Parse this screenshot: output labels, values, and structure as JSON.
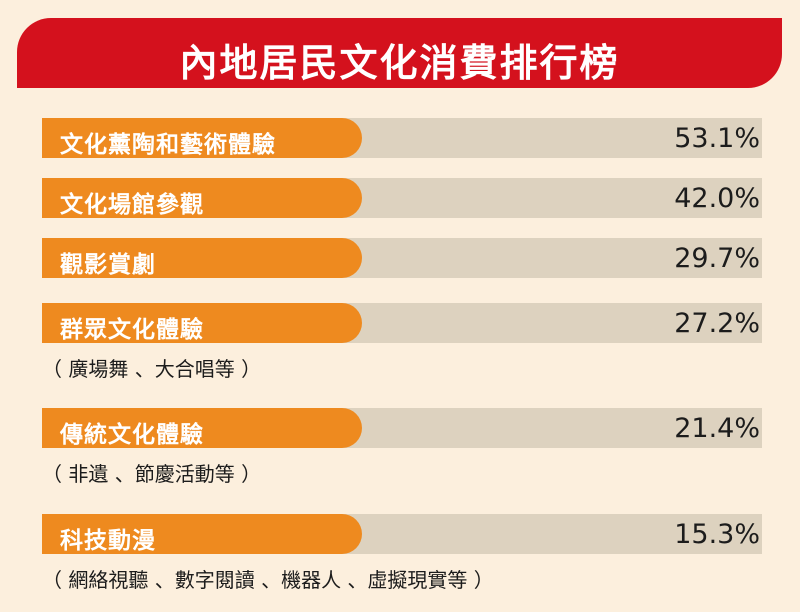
{
  "title": "內地居民文化消費排行榜",
  "colors": {
    "banner": "#d4111d",
    "label_pill": "#ee8a1f",
    "track": "#ddd2bf",
    "background": "#fcefdd"
  },
  "chart_data": {
    "type": "bar",
    "title": "內地居民文化消費排行榜",
    "categories": [
      "文化薰陶和藝術體驗",
      "文化場館參觀",
      "觀影賞劇",
      "群眾文化體驗",
      "傳統文化體驗",
      "科技動漫"
    ],
    "values": [
      53.1,
      42.0,
      29.7,
      27.2,
      21.4,
      15.3
    ],
    "value_labels": [
      "53.1%",
      "42.0%",
      "29.7%",
      "27.2%",
      "21.4%",
      "15.3%"
    ],
    "notes": [
      "",
      "",
      "",
      "（ 廣場舞 、大合唱等 ）",
      "（ 非遺 、節慶活動等 ）",
      "（ 網絡視聽 、數字閱讀 、機器人 、虛擬現實等 ）"
    ],
    "ylabel": "%"
  }
}
